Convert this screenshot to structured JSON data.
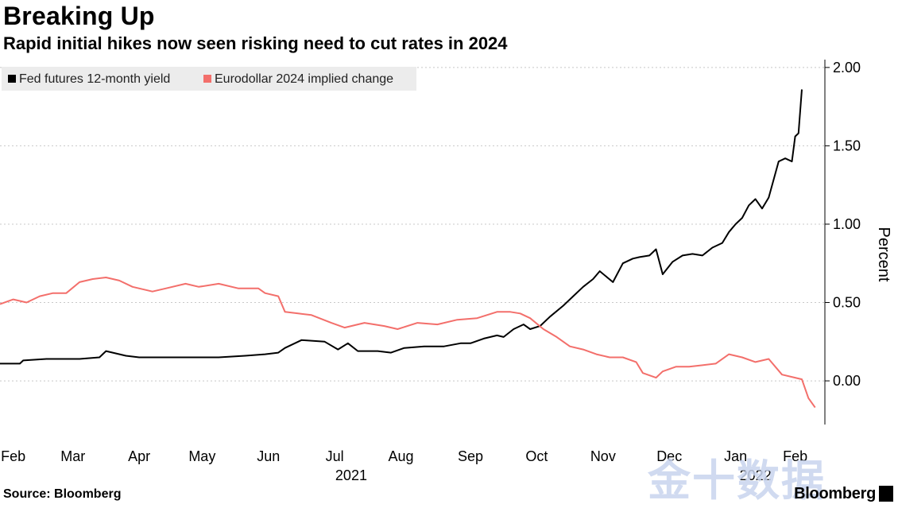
{
  "header": {
    "title": "Breaking Up",
    "subtitle": "Rapid initial hikes now seen risking need to cut rates in 2024"
  },
  "footer": {
    "source": "Source: Bloomberg",
    "brand": "Bloomberg"
  },
  "watermark": "金十数据",
  "colors": {
    "series1": "#000000",
    "series2": "#f36f6b",
    "grid": "#c8c8c8",
    "legend_bg": "#ececec"
  },
  "chart_data": {
    "type": "line",
    "title": "Breaking Up",
    "subtitle": "Rapid initial hikes now seen risking need to cut rates in 2024",
    "ylabel": "Percent",
    "ylim": [
      -0.37,
      2.05
    ],
    "y_ticks": [
      0.0,
      0.5,
      1.0,
      1.5,
      2.0
    ],
    "y_tick_labels": [
      "0.00",
      "0.50",
      "1.00",
      "1.50",
      "2.00"
    ],
    "y_axis_side": "right",
    "grid": "horizontal dotted",
    "legend_placement": "top-left",
    "x_range": [
      0,
      12.4
    ],
    "x_ticks": [
      {
        "label": "Feb",
        "x": 0.2
      },
      {
        "label": "Mar",
        "x": 1.1
      },
      {
        "label": "Apr",
        "x": 2.1
      },
      {
        "label": "May",
        "x": 3.05
      },
      {
        "label": "Jun",
        "x": 4.05
      },
      {
        "label": "Jul",
        "x": 5.05
      },
      {
        "label": "Aug",
        "x": 6.05
      },
      {
        "label": "Sep",
        "x": 7.1
      },
      {
        "label": "Oct",
        "x": 8.1
      },
      {
        "label": "Nov",
        "x": 9.1
      },
      {
        "label": "Dec",
        "x": 10.1
      },
      {
        "label": "Jan",
        "x": 11.1
      },
      {
        "label": "Feb",
        "x": 12.0
      }
    ],
    "year_labels": [
      {
        "label": "2021",
        "x": 5.3
      },
      {
        "label": "2022",
        "x": 11.4
      }
    ],
    "series": [
      {
        "name": "Fed futures 12-month yield",
        "color": "#000000",
        "x": [
          0,
          0.3,
          0.35,
          0.7,
          1.0,
          1.2,
          1.5,
          1.6,
          1.9,
          2.1,
          2.5,
          2.8,
          3.0,
          3.3,
          3.7,
          4.0,
          4.2,
          4.3,
          4.55,
          4.9,
          5.1,
          5.25,
          5.4,
          5.7,
          5.9,
          6.1,
          6.4,
          6.7,
          6.95,
          7.1,
          7.3,
          7.5,
          7.6,
          7.75,
          7.9,
          8.0,
          8.15,
          8.3,
          8.5,
          8.65,
          8.8,
          8.95,
          9.05,
          9.25,
          9.4,
          9.55,
          9.65,
          9.8,
          9.9,
          10.0,
          10.15,
          10.3,
          10.45,
          10.6,
          10.75,
          10.9,
          11.0,
          11.1,
          11.2,
          11.3,
          11.4,
          11.5,
          11.6,
          11.75,
          11.85,
          11.95,
          12.0,
          12.05,
          12.1
        ],
        "values": [
          0.11,
          0.11,
          0.13,
          0.14,
          0.14,
          0.14,
          0.15,
          0.19,
          0.16,
          0.15,
          0.15,
          0.15,
          0.15,
          0.15,
          0.16,
          0.17,
          0.18,
          0.21,
          0.26,
          0.25,
          0.2,
          0.24,
          0.19,
          0.19,
          0.18,
          0.21,
          0.22,
          0.22,
          0.24,
          0.24,
          0.27,
          0.29,
          0.28,
          0.33,
          0.36,
          0.33,
          0.35,
          0.41,
          0.48,
          0.54,
          0.6,
          0.65,
          0.7,
          0.63,
          0.75,
          0.78,
          0.79,
          0.8,
          0.84,
          0.68,
          0.76,
          0.8,
          0.81,
          0.8,
          0.85,
          0.88,
          0.95,
          1.0,
          1.04,
          1.12,
          1.16,
          1.1,
          1.17,
          1.4,
          1.42,
          1.4,
          1.56,
          1.58,
          1.86
        ]
      },
      {
        "name": "Eurodollar 2024 implied change",
        "color": "#f36f6b",
        "x": [
          0,
          0.2,
          0.4,
          0.6,
          0.8,
          1.0,
          1.2,
          1.4,
          1.6,
          1.8,
          2.0,
          2.3,
          2.5,
          2.8,
          3.0,
          3.3,
          3.6,
          3.9,
          4.0,
          4.2,
          4.3,
          4.5,
          4.7,
          5.0,
          5.2,
          5.5,
          5.8,
          6.0,
          6.3,
          6.6,
          6.9,
          7.2,
          7.5,
          7.7,
          7.85,
          8.0,
          8.2,
          8.4,
          8.6,
          8.8,
          9.0,
          9.2,
          9.4,
          9.6,
          9.7,
          9.9,
          10.0,
          10.2,
          10.4,
          10.6,
          10.8,
          11.0,
          11.2,
          11.4,
          11.6,
          11.8,
          12.0,
          12.1,
          12.2,
          12.3
        ],
        "values": [
          0.49,
          0.52,
          0.5,
          0.54,
          0.56,
          0.56,
          0.63,
          0.65,
          0.66,
          0.64,
          0.6,
          0.57,
          0.59,
          0.62,
          0.6,
          0.62,
          0.59,
          0.59,
          0.56,
          0.54,
          0.44,
          0.43,
          0.42,
          0.37,
          0.34,
          0.37,
          0.35,
          0.33,
          0.37,
          0.36,
          0.39,
          0.4,
          0.44,
          0.44,
          0.43,
          0.4,
          0.33,
          0.28,
          0.22,
          0.2,
          0.17,
          0.15,
          0.15,
          0.12,
          0.05,
          0.02,
          0.06,
          0.09,
          0.09,
          0.1,
          0.11,
          0.17,
          0.15,
          0.12,
          0.14,
          0.04,
          0.02,
          0.01,
          -0.11,
          -0.17
        ]
      }
    ]
  }
}
